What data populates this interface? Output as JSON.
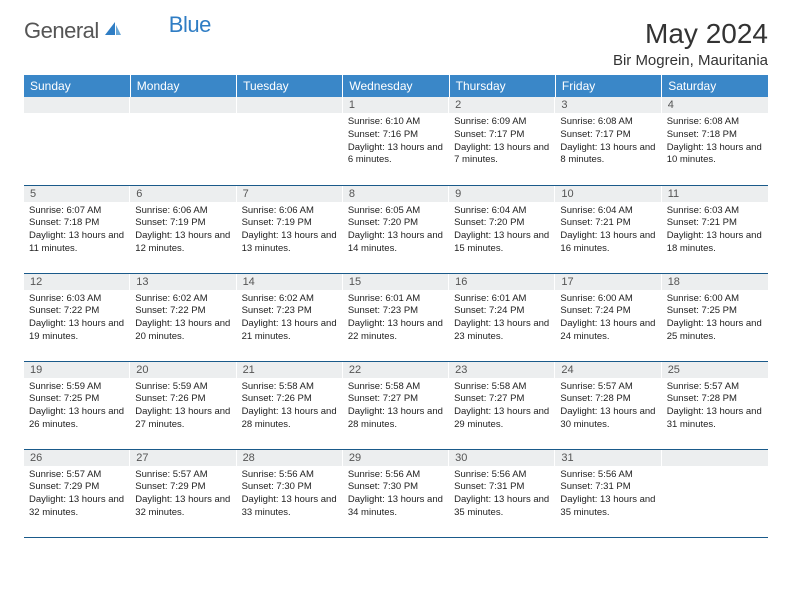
{
  "logo": {
    "text1": "General",
    "text2": "Blue",
    "icon_color": "#2f7dc4",
    "text_color": "#555"
  },
  "header": {
    "month": "May 2024",
    "location": "Bir Mogrein, Mauritania"
  },
  "colors": {
    "header_bg": "#3a87c8",
    "header_fg": "#ffffff",
    "daynum_bg": "#eceeef",
    "border": "#1a5a8a"
  },
  "weekdays": [
    "Sunday",
    "Monday",
    "Tuesday",
    "Wednesday",
    "Thursday",
    "Friday",
    "Saturday"
  ],
  "weeks": [
    [
      {
        "n": "",
        "sr": "",
        "ss": "",
        "dl": ""
      },
      {
        "n": "",
        "sr": "",
        "ss": "",
        "dl": ""
      },
      {
        "n": "",
        "sr": "",
        "ss": "",
        "dl": ""
      },
      {
        "n": "1",
        "sr": "6:10 AM",
        "ss": "7:16 PM",
        "dl": "13 hours and 6 minutes."
      },
      {
        "n": "2",
        "sr": "6:09 AM",
        "ss": "7:17 PM",
        "dl": "13 hours and 7 minutes."
      },
      {
        "n": "3",
        "sr": "6:08 AM",
        "ss": "7:17 PM",
        "dl": "13 hours and 8 minutes."
      },
      {
        "n": "4",
        "sr": "6:08 AM",
        "ss": "7:18 PM",
        "dl": "13 hours and 10 minutes."
      }
    ],
    [
      {
        "n": "5",
        "sr": "6:07 AM",
        "ss": "7:18 PM",
        "dl": "13 hours and 11 minutes."
      },
      {
        "n": "6",
        "sr": "6:06 AM",
        "ss": "7:19 PM",
        "dl": "13 hours and 12 minutes."
      },
      {
        "n": "7",
        "sr": "6:06 AM",
        "ss": "7:19 PM",
        "dl": "13 hours and 13 minutes."
      },
      {
        "n": "8",
        "sr": "6:05 AM",
        "ss": "7:20 PM",
        "dl": "13 hours and 14 minutes."
      },
      {
        "n": "9",
        "sr": "6:04 AM",
        "ss": "7:20 PM",
        "dl": "13 hours and 15 minutes."
      },
      {
        "n": "10",
        "sr": "6:04 AM",
        "ss": "7:21 PM",
        "dl": "13 hours and 16 minutes."
      },
      {
        "n": "11",
        "sr": "6:03 AM",
        "ss": "7:21 PM",
        "dl": "13 hours and 18 minutes."
      }
    ],
    [
      {
        "n": "12",
        "sr": "6:03 AM",
        "ss": "7:22 PM",
        "dl": "13 hours and 19 minutes."
      },
      {
        "n": "13",
        "sr": "6:02 AM",
        "ss": "7:22 PM",
        "dl": "13 hours and 20 minutes."
      },
      {
        "n": "14",
        "sr": "6:02 AM",
        "ss": "7:23 PM",
        "dl": "13 hours and 21 minutes."
      },
      {
        "n": "15",
        "sr": "6:01 AM",
        "ss": "7:23 PM",
        "dl": "13 hours and 22 minutes."
      },
      {
        "n": "16",
        "sr": "6:01 AM",
        "ss": "7:24 PM",
        "dl": "13 hours and 23 minutes."
      },
      {
        "n": "17",
        "sr": "6:00 AM",
        "ss": "7:24 PM",
        "dl": "13 hours and 24 minutes."
      },
      {
        "n": "18",
        "sr": "6:00 AM",
        "ss": "7:25 PM",
        "dl": "13 hours and 25 minutes."
      }
    ],
    [
      {
        "n": "19",
        "sr": "5:59 AM",
        "ss": "7:25 PM",
        "dl": "13 hours and 26 minutes."
      },
      {
        "n": "20",
        "sr": "5:59 AM",
        "ss": "7:26 PM",
        "dl": "13 hours and 27 minutes."
      },
      {
        "n": "21",
        "sr": "5:58 AM",
        "ss": "7:26 PM",
        "dl": "13 hours and 28 minutes."
      },
      {
        "n": "22",
        "sr": "5:58 AM",
        "ss": "7:27 PM",
        "dl": "13 hours and 28 minutes."
      },
      {
        "n": "23",
        "sr": "5:58 AM",
        "ss": "7:27 PM",
        "dl": "13 hours and 29 minutes."
      },
      {
        "n": "24",
        "sr": "5:57 AM",
        "ss": "7:28 PM",
        "dl": "13 hours and 30 minutes."
      },
      {
        "n": "25",
        "sr": "5:57 AM",
        "ss": "7:28 PM",
        "dl": "13 hours and 31 minutes."
      }
    ],
    [
      {
        "n": "26",
        "sr": "5:57 AM",
        "ss": "7:29 PM",
        "dl": "13 hours and 32 minutes."
      },
      {
        "n": "27",
        "sr": "5:57 AM",
        "ss": "7:29 PM",
        "dl": "13 hours and 32 minutes."
      },
      {
        "n": "28",
        "sr": "5:56 AM",
        "ss": "7:30 PM",
        "dl": "13 hours and 33 minutes."
      },
      {
        "n": "29",
        "sr": "5:56 AM",
        "ss": "7:30 PM",
        "dl": "13 hours and 34 minutes."
      },
      {
        "n": "30",
        "sr": "5:56 AM",
        "ss": "7:31 PM",
        "dl": "13 hours and 35 minutes."
      },
      {
        "n": "31",
        "sr": "5:56 AM",
        "ss": "7:31 PM",
        "dl": "13 hours and 35 minutes."
      },
      {
        "n": "",
        "sr": "",
        "ss": "",
        "dl": ""
      }
    ]
  ],
  "labels": {
    "sunrise": "Sunrise:",
    "sunset": "Sunset:",
    "daylight": "Daylight:"
  }
}
